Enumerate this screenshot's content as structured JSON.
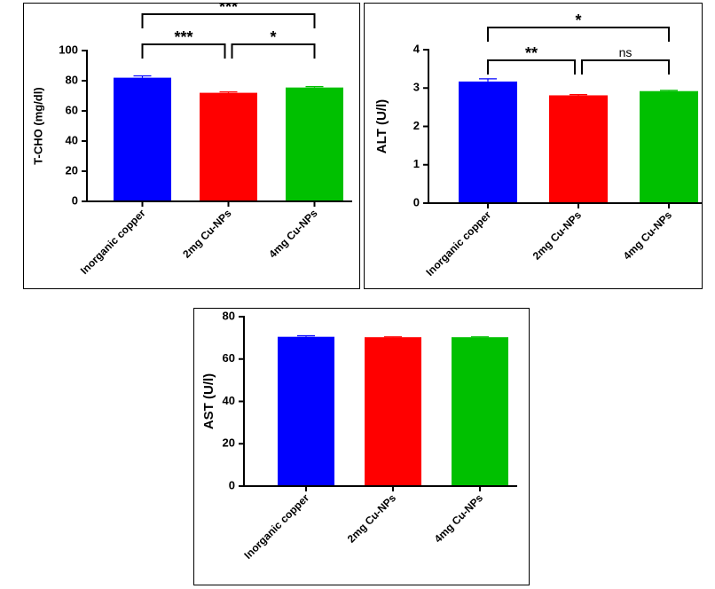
{
  "chart_data": [
    {
      "type": "bar",
      "ylabel": "T-CHO (mg/dl)",
      "categories": [
        "Inorganic copper",
        "2mg Cu-NPs",
        "4mg Cu-NPs"
      ],
      "values": [
        82,
        72,
        75.5
      ],
      "errors": [
        1.2,
        0.6,
        0.6
      ],
      "colors": [
        "#0000ff",
        "#ff0000",
        "#00c000"
      ],
      "ylim": [
        0,
        100
      ],
      "yticks": [
        "0",
        "20",
        "40",
        "60",
        "80",
        "100"
      ],
      "significance": [
        {
          "from": 0,
          "to": 2,
          "label": "***"
        },
        {
          "from": 0,
          "to": 1,
          "label": "***"
        },
        {
          "from": 1,
          "to": 2,
          "label": "*"
        }
      ]
    },
    {
      "type": "bar",
      "ylabel": "ALT (U/l)",
      "categories": [
        "Inorganic copper",
        "2mg Cu-NPs",
        "4mg Cu-NPs"
      ],
      "values": [
        3.17,
        2.81,
        2.92
      ],
      "errors": [
        0.07,
        0.02,
        0.02
      ],
      "colors": [
        "#0000ff",
        "#ff0000",
        "#00c000"
      ],
      "ylim": [
        0,
        4
      ],
      "yticks": [
        "0",
        "1",
        "2",
        "3",
        "4"
      ],
      "significance": [
        {
          "from": 0,
          "to": 2,
          "label": "*"
        },
        {
          "from": 0,
          "to": 1,
          "label": "**"
        },
        {
          "from": 1,
          "to": 2,
          "label": "ns"
        }
      ]
    },
    {
      "type": "bar",
      "ylabel": "AST (U/l)",
      "categories": [
        "Inorganic copper",
        "2mg Cu-NPs",
        "4mg Cu-NPs"
      ],
      "values": [
        70.5,
        70.3,
        70.3
      ],
      "errors": [
        0.5,
        0.2,
        0.2
      ],
      "colors": [
        "#0000ff",
        "#ff0000",
        "#00c000"
      ],
      "ylim": [
        0,
        80
      ],
      "yticks": [
        "0",
        "20",
        "40",
        "60",
        "80"
      ],
      "significance": []
    }
  ]
}
